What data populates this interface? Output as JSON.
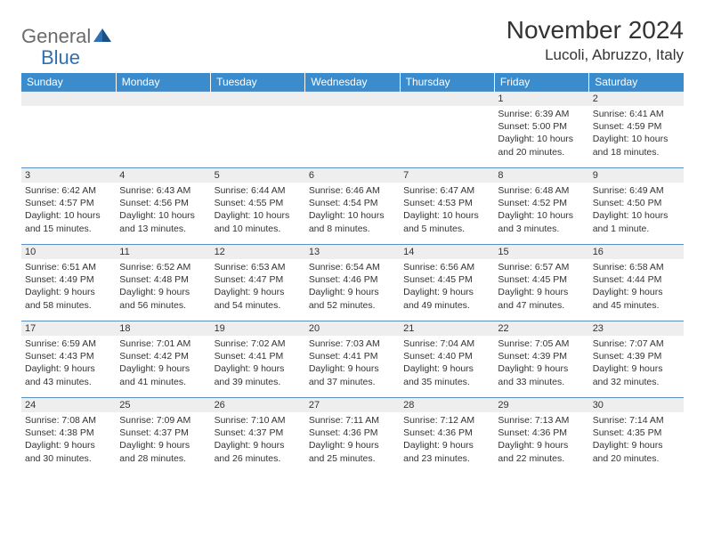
{
  "logo": {
    "general": "General",
    "blue": "Blue"
  },
  "title": "November 2024",
  "location": "Lucoli, Abruzzo, Italy",
  "colors": {
    "header_bg": "#3b8ccc",
    "header_text": "#ffffff",
    "daynum_bg": "#eeeeee",
    "row_divider": "#5a8fc2",
    "text": "#333333",
    "logo_gray": "#6b6b6b",
    "logo_blue": "#2f6fb3"
  },
  "days": [
    "Sunday",
    "Monday",
    "Tuesday",
    "Wednesday",
    "Thursday",
    "Friday",
    "Saturday"
  ],
  "weeks": [
    [
      null,
      null,
      null,
      null,
      null,
      {
        "n": "1",
        "sr": "6:39 AM",
        "ss": "5:00 PM",
        "dl": "10 hours and 20 minutes."
      },
      {
        "n": "2",
        "sr": "6:41 AM",
        "ss": "4:59 PM",
        "dl": "10 hours and 18 minutes."
      }
    ],
    [
      {
        "n": "3",
        "sr": "6:42 AM",
        "ss": "4:57 PM",
        "dl": "10 hours and 15 minutes."
      },
      {
        "n": "4",
        "sr": "6:43 AM",
        "ss": "4:56 PM",
        "dl": "10 hours and 13 minutes."
      },
      {
        "n": "5",
        "sr": "6:44 AM",
        "ss": "4:55 PM",
        "dl": "10 hours and 10 minutes."
      },
      {
        "n": "6",
        "sr": "6:46 AM",
        "ss": "4:54 PM",
        "dl": "10 hours and 8 minutes."
      },
      {
        "n": "7",
        "sr": "6:47 AM",
        "ss": "4:53 PM",
        "dl": "10 hours and 5 minutes."
      },
      {
        "n": "8",
        "sr": "6:48 AM",
        "ss": "4:52 PM",
        "dl": "10 hours and 3 minutes."
      },
      {
        "n": "9",
        "sr": "6:49 AM",
        "ss": "4:50 PM",
        "dl": "10 hours and 1 minute."
      }
    ],
    [
      {
        "n": "10",
        "sr": "6:51 AM",
        "ss": "4:49 PM",
        "dl": "9 hours and 58 minutes."
      },
      {
        "n": "11",
        "sr": "6:52 AM",
        "ss": "4:48 PM",
        "dl": "9 hours and 56 minutes."
      },
      {
        "n": "12",
        "sr": "6:53 AM",
        "ss": "4:47 PM",
        "dl": "9 hours and 54 minutes."
      },
      {
        "n": "13",
        "sr": "6:54 AM",
        "ss": "4:46 PM",
        "dl": "9 hours and 52 minutes."
      },
      {
        "n": "14",
        "sr": "6:56 AM",
        "ss": "4:45 PM",
        "dl": "9 hours and 49 minutes."
      },
      {
        "n": "15",
        "sr": "6:57 AM",
        "ss": "4:45 PM",
        "dl": "9 hours and 47 minutes."
      },
      {
        "n": "16",
        "sr": "6:58 AM",
        "ss": "4:44 PM",
        "dl": "9 hours and 45 minutes."
      }
    ],
    [
      {
        "n": "17",
        "sr": "6:59 AM",
        "ss": "4:43 PM",
        "dl": "9 hours and 43 minutes."
      },
      {
        "n": "18",
        "sr": "7:01 AM",
        "ss": "4:42 PM",
        "dl": "9 hours and 41 minutes."
      },
      {
        "n": "19",
        "sr": "7:02 AM",
        "ss": "4:41 PM",
        "dl": "9 hours and 39 minutes."
      },
      {
        "n": "20",
        "sr": "7:03 AM",
        "ss": "4:41 PM",
        "dl": "9 hours and 37 minutes."
      },
      {
        "n": "21",
        "sr": "7:04 AM",
        "ss": "4:40 PM",
        "dl": "9 hours and 35 minutes."
      },
      {
        "n": "22",
        "sr": "7:05 AM",
        "ss": "4:39 PM",
        "dl": "9 hours and 33 minutes."
      },
      {
        "n": "23",
        "sr": "7:07 AM",
        "ss": "4:39 PM",
        "dl": "9 hours and 32 minutes."
      }
    ],
    [
      {
        "n": "24",
        "sr": "7:08 AM",
        "ss": "4:38 PM",
        "dl": "9 hours and 30 minutes."
      },
      {
        "n": "25",
        "sr": "7:09 AM",
        "ss": "4:37 PM",
        "dl": "9 hours and 28 minutes."
      },
      {
        "n": "26",
        "sr": "7:10 AM",
        "ss": "4:37 PM",
        "dl": "9 hours and 26 minutes."
      },
      {
        "n": "27",
        "sr": "7:11 AM",
        "ss": "4:36 PM",
        "dl": "9 hours and 25 minutes."
      },
      {
        "n": "28",
        "sr": "7:12 AM",
        "ss": "4:36 PM",
        "dl": "9 hours and 23 minutes."
      },
      {
        "n": "29",
        "sr": "7:13 AM",
        "ss": "4:36 PM",
        "dl": "9 hours and 22 minutes."
      },
      {
        "n": "30",
        "sr": "7:14 AM",
        "ss": "4:35 PM",
        "dl": "9 hours and 20 minutes."
      }
    ]
  ],
  "labels": {
    "sunrise": "Sunrise:",
    "sunset": "Sunset:",
    "daylight": "Daylight:"
  }
}
